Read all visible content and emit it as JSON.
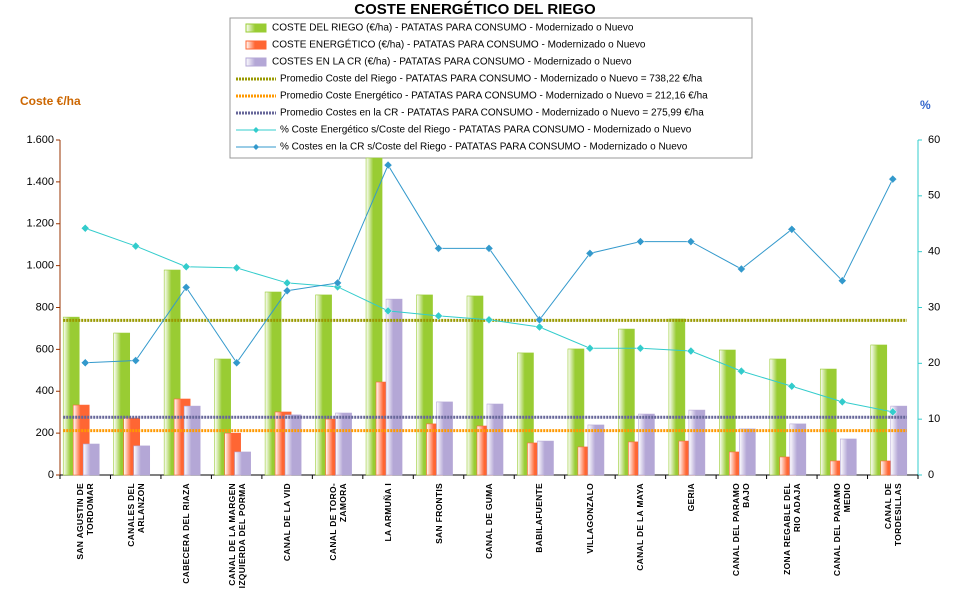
{
  "chart_data": {
    "type": "combo",
    "title": "COSTE ENERGÉTICO DEL RIEGO",
    "ylabel": "Coste €/ha",
    "y2label": "%",
    "categories": [
      "SAN AGUSTIN DE TORDOMAR",
      "CANALES DEL ARLANZON",
      "CABECERA DEL RIAZA",
      "CANAL DE LA MARGEN IZQUIERDA DEL PORMA",
      "CANAL DE LA VID",
      "CANAL DE TORO-ZAMORA",
      "LA ARMUÑA I",
      "SAN FRONTIS",
      "CANAL DE GUMA",
      "BABILAFUENTE",
      "VILLAGONZALO",
      "CANAL DE LA MAYA",
      "GERIA",
      "CANAL DEL PARAMO BAJO",
      "ZONA REGABLE DEL RIO ADAJA",
      "CANAL DEL PARAMO MEDIO",
      "CANAL DE TORDESILLAS"
    ],
    "series": [
      {
        "name": "COSTE DEL RIEGO (€/ha) - PATATAS PARA CONSUMO - Modernizado o Nuevo",
        "type": "bar",
        "color": "#99cc33",
        "values": [
          754,
          678,
          979,
          554,
          874,
          860,
          1514,
          860,
          855,
          583,
          602,
          697,
          745,
          597,
          554,
          506,
          621
        ]
      },
      {
        "name": "COSTE ENERGÉTICO (€/ha) - PATATAS PARA CONSUMO - Modernizado o Nuevo",
        "type": "bar",
        "color": "#ff6633",
        "values": [
          334,
          272,
          363,
          200,
          301,
          267,
          444,
          244,
          234,
          153,
          134,
          158,
          162,
          110,
          86,
          67,
          67
        ]
      },
      {
        "name": "COSTES EN LA CR (€/ha) - PATATAS PARA CONSUMO - Modernizado o Nuevo",
        "type": "bar",
        "color": "#b4a7d6",
        "values": [
          148,
          139,
          329,
          110,
          287,
          296,
          840,
          349,
          339,
          162,
          239,
          291,
          310,
          220,
          244,
          172,
          329
        ]
      },
      {
        "name": "Promedio Coste del Riego - PATATAS PARA CONSUMO - Modernizado o Nuevo = 738,22 €/ha",
        "type": "hline",
        "color": "#999900",
        "value": 738.22
      },
      {
        "name": "Promedio Coste Energético - PATATAS PARA CONSUMO - Modernizado o Nuevo = 212,16 €/ha",
        "type": "hline",
        "color": "#ff9900",
        "value": 212.16
      },
      {
        "name": "Promedio Costes en la CR - PATATAS PARA CONSUMO - Modernizado o Nuevo = 275,99 €/ha",
        "type": "hline",
        "color": "#666699",
        "value": 275.99
      },
      {
        "name": "% Coste Energético s/Coste del Riego - PATATAS PARA CONSUMO - Modernizado o Nuevo",
        "type": "line",
        "axis": "y2",
        "color": "#33cccc",
        "values": [
          44.2,
          41.0,
          37.3,
          37.1,
          34.4,
          33.7,
          29.4,
          28.5,
          27.8,
          26.5,
          22.7,
          22.7,
          22.2,
          18.6,
          15.9,
          13.1,
          11.3
        ]
      },
      {
        "name": "% Costes en la CR s/Coste del Riego - PATATAS PARA CONSUMO - Modernizado o Nuevo",
        "type": "line",
        "axis": "y2",
        "color": "#3399cc",
        "values": [
          20.1,
          20.5,
          33.6,
          20.1,
          33.0,
          34.4,
          55.5,
          40.6,
          40.6,
          27.8,
          39.7,
          41.8,
          41.8,
          36.9,
          44.0,
          34.8,
          53.0
        ]
      }
    ],
    "ylim": [
      0,
      1600
    ],
    "yticks": [
      0,
      200,
      400,
      600,
      800,
      {
        "value": 1000,
        "label": "1.000"
      },
      {
        "value": 1200,
        "label": "1.200"
      },
      {
        "value": 1400,
        "label": "1.400"
      },
      {
        "value": 1600,
        "label": "1.600"
      }
    ],
    "y2lim": [
      0,
      60
    ],
    "y2ticks": [
      0,
      10,
      20,
      30,
      40,
      50,
      60
    ]
  }
}
